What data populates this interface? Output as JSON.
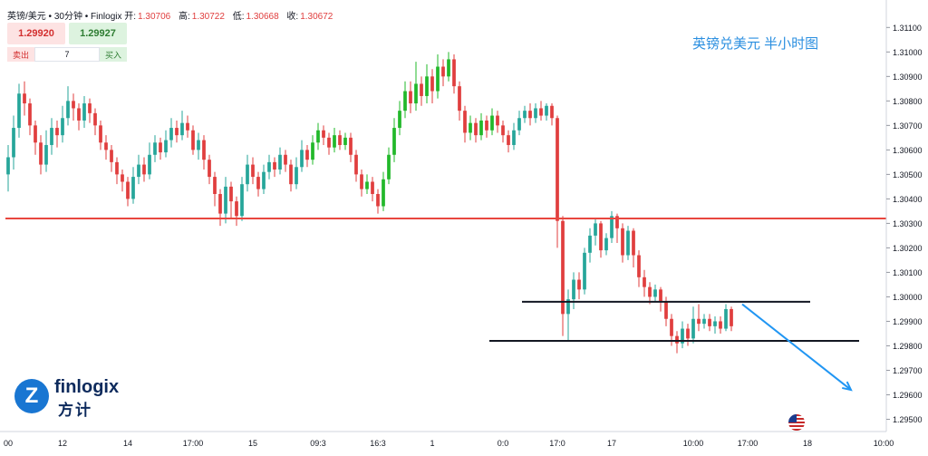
{
  "header": {
    "symbol": "英镑/美元 • 30分钟 • Finlogix",
    "open_label": "开:",
    "open_value": "1.30706",
    "high_label": "高:",
    "high_value": "1.30722",
    "low_label": "低:",
    "low_value": "1.30668",
    "close_label": "收:",
    "close_value": "1.30672"
  },
  "trade_panel": {
    "sell_price": "1.29920",
    "buy_price": "1.29927",
    "sell_label": "卖出",
    "buy_label": "买入",
    "quantity": "7"
  },
  "chart_title": "英镑兑美元 半小时图",
  "logo": {
    "brand": "finlogix",
    "brand_cn": "方计"
  },
  "colors": {
    "up": "#26a69a",
    "up_bright": "#22b82a",
    "down": "#e03e3e",
    "resistance_line": "#e8473f",
    "support_lines": "#131722",
    "arrow": "#2196f3",
    "title": "#2b8fe0"
  },
  "chart_data": {
    "type": "candlestick",
    "title": "英镑兑美元 半小时图",
    "ylim": [
      1.2945,
      1.3119
    ],
    "y_ticks": [
      "1.31100",
      "1.31000",
      "1.30900",
      "1.30800",
      "1.30700",
      "1.30600",
      "1.30500",
      "1.30400",
      "1.30300",
      "1.30200",
      "1.30100",
      "1.30000",
      "1.29900",
      "1.29800",
      "1.29700",
      "1.29600",
      "1.29500"
    ],
    "x_ticks": [
      "00",
      "12",
      "14",
      "17:00",
      "15",
      "09:3",
      "16:3",
      "1",
      "0:0",
      "17:0",
      "17",
      "10:00",
      "17:00",
      "18",
      "10:00"
    ],
    "x_tick_slots": [
      0,
      10,
      22,
      34,
      45,
      57,
      68,
      78,
      91,
      101,
      111,
      126,
      136,
      147,
      161
    ],
    "x_slots": 162,
    "candles": [
      {
        "o": 1.305,
        "c": 1.3057,
        "h": 1.3062,
        "l": 1.3043
      },
      {
        "o": 1.3057,
        "c": 1.3069,
        "h": 1.3074,
        "l": 1.3052
      },
      {
        "o": 1.3069,
        "c": 1.3083,
        "h": 1.3087,
        "l": 1.3065
      },
      {
        "o": 1.3083,
        "c": 1.3079,
        "h": 1.3088,
        "l": 1.3074
      },
      {
        "o": 1.3079,
        "c": 1.307,
        "h": 1.3081,
        "l": 1.3066
      },
      {
        "o": 1.307,
        "c": 1.3063,
        "h": 1.3072,
        "l": 1.3058
      },
      {
        "o": 1.3063,
        "c": 1.3054,
        "h": 1.3066,
        "l": 1.305
      },
      {
        "o": 1.3054,
        "c": 1.3062,
        "h": 1.3068,
        "l": 1.3051
      },
      {
        "o": 1.3062,
        "c": 1.3069,
        "h": 1.3073,
        "l": 1.3058
      },
      {
        "o": 1.3069,
        "c": 1.3066,
        "h": 1.3072,
        "l": 1.3061
      },
      {
        "o": 1.3066,
        "c": 1.3073,
        "h": 1.3078,
        "l": 1.3063
      },
      {
        "o": 1.3073,
        "c": 1.308,
        "h": 1.3086,
        "l": 1.307
      },
      {
        "o": 1.308,
        "c": 1.3077,
        "h": 1.3083,
        "l": 1.3072
      },
      {
        "o": 1.3077,
        "c": 1.3072,
        "h": 1.3079,
        "l": 1.3068
      },
      {
        "o": 1.3072,
        "c": 1.3079,
        "h": 1.3082,
        "l": 1.3069
      },
      {
        "o": 1.3079,
        "c": 1.3075,
        "h": 1.3081,
        "l": 1.3071
      },
      {
        "o": 1.3075,
        "c": 1.307,
        "h": 1.3077,
        "l": 1.3066
      },
      {
        "o": 1.307,
        "c": 1.3063,
        "h": 1.3072,
        "l": 1.306
      },
      {
        "o": 1.3063,
        "c": 1.306,
        "h": 1.3066,
        "l": 1.3056
      },
      {
        "o": 1.306,
        "c": 1.3055,
        "h": 1.3062,
        "l": 1.3051
      },
      {
        "o": 1.3055,
        "c": 1.305,
        "h": 1.3057,
        "l": 1.3046
      },
      {
        "o": 1.305,
        "c": 1.3047,
        "h": 1.3052,
        "l": 1.3043
      },
      {
        "o": 1.3047,
        "c": 1.304,
        "h": 1.3049,
        "l": 1.3037
      },
      {
        "o": 1.304,
        "c": 1.3049,
        "h": 1.3053,
        "l": 1.3038
      },
      {
        "o": 1.3049,
        "c": 1.3054,
        "h": 1.3058,
        "l": 1.3046
      },
      {
        "o": 1.3054,
        "c": 1.305,
        "h": 1.3057,
        "l": 1.3047
      },
      {
        "o": 1.305,
        "c": 1.3058,
        "h": 1.3063,
        "l": 1.3048
      },
      {
        "o": 1.3058,
        "c": 1.3063,
        "h": 1.3066,
        "l": 1.3055
      },
      {
        "o": 1.3063,
        "c": 1.3059,
        "h": 1.3065,
        "l": 1.3056
      },
      {
        "o": 1.3059,
        "c": 1.3064,
        "h": 1.3068,
        "l": 1.3057
      },
      {
        "o": 1.3064,
        "c": 1.3069,
        "h": 1.3073,
        "l": 1.3061
      },
      {
        "o": 1.3069,
        "c": 1.3066,
        "h": 1.3072,
        "l": 1.3063
      },
      {
        "o": 1.3066,
        "c": 1.3071,
        "h": 1.3076,
        "l": 1.3064
      },
      {
        "o": 1.3071,
        "c": 1.3068,
        "h": 1.3074,
        "l": 1.3065
      },
      {
        "o": 1.3068,
        "c": 1.306,
        "h": 1.307,
        "l": 1.3058
      },
      {
        "o": 1.306,
        "c": 1.3064,
        "h": 1.3067,
        "l": 1.3056
      },
      {
        "o": 1.3064,
        "c": 1.3056,
        "h": 1.3066,
        "l": 1.3052
      },
      {
        "o": 1.3056,
        "c": 1.3049,
        "h": 1.3058,
        "l": 1.3046
      },
      {
        "o": 1.3049,
        "c": 1.3042,
        "h": 1.3051,
        "l": 1.3037
      },
      {
        "o": 1.3042,
        "c": 1.3034,
        "h": 1.3044,
        "l": 1.3029
      },
      {
        "o": 1.3034,
        "c": 1.3045,
        "h": 1.3049,
        "l": 1.303
      },
      {
        "o": 1.3045,
        "c": 1.3039,
        "h": 1.3047,
        "l": 1.3032
      },
      {
        "o": 1.3039,
        "c": 1.3033,
        "h": 1.3041,
        "l": 1.3029
      },
      {
        "o": 1.3033,
        "c": 1.3046,
        "h": 1.3049,
        "l": 1.3031
      },
      {
        "o": 1.3046,
        "c": 1.3054,
        "h": 1.3058,
        "l": 1.3043
      },
      {
        "o": 1.3054,
        "c": 1.3049,
        "h": 1.3057,
        "l": 1.3046
      },
      {
        "o": 1.3049,
        "c": 1.3044,
        "h": 1.3051,
        "l": 1.3041
      },
      {
        "o": 1.3044,
        "c": 1.3051,
        "h": 1.3054,
        "l": 1.3042
      },
      {
        "o": 1.3051,
        "c": 1.3055,
        "h": 1.3058,
        "l": 1.3048
      },
      {
        "o": 1.3055,
        "c": 1.3052,
        "h": 1.3057,
        "l": 1.3049
      },
      {
        "o": 1.3052,
        "c": 1.3058,
        "h": 1.3061,
        "l": 1.305
      },
      {
        "o": 1.3058,
        "c": 1.3054,
        "h": 1.306,
        "l": 1.3051
      },
      {
        "o": 1.3054,
        "c": 1.3046,
        "h": 1.3056,
        "l": 1.3043
      },
      {
        "o": 1.3046,
        "c": 1.3053,
        "h": 1.3057,
        "l": 1.3044
      },
      {
        "o": 1.3053,
        "c": 1.306,
        "h": 1.3064,
        "l": 1.3051
      },
      {
        "o": 1.306,
        "c": 1.3056,
        "h": 1.3062,
        "l": 1.3053
      },
      {
        "o": 1.3056,
        "c": 1.3063,
        "h": 1.3066,
        "l": 1.3054
      },
      {
        "o": 1.3063,
        "c": 1.3068,
        "h": 1.3071,
        "l": 1.306
      },
      {
        "o": 1.3068,
        "c": 1.3065,
        "h": 1.307,
        "l": 1.3062
      },
      {
        "o": 1.3065,
        "c": 1.3061,
        "h": 1.3067,
        "l": 1.3058
      },
      {
        "o": 1.3061,
        "c": 1.3066,
        "h": 1.3069,
        "l": 1.3059
      },
      {
        "o": 1.3066,
        "c": 1.3062,
        "h": 1.3068,
        "l": 1.306
      },
      {
        "o": 1.3062,
        "c": 1.3065,
        "h": 1.3067,
        "l": 1.306
      },
      {
        "o": 1.3065,
        "c": 1.3058,
        "h": 1.3067,
        "l": 1.3055
      },
      {
        "o": 1.3058,
        "c": 1.305,
        "h": 1.306,
        "l": 1.3047
      },
      {
        "o": 1.305,
        "c": 1.3044,
        "h": 1.3052,
        "l": 1.3041
      },
      {
        "o": 1.3044,
        "c": 1.3047,
        "h": 1.305,
        "l": 1.3042
      },
      {
        "o": 1.3047,
        "c": 1.3042,
        "h": 1.3049,
        "l": 1.3039
      },
      {
        "o": 1.3042,
        "c": 1.3037,
        "h": 1.3044,
        "l": 1.3034
      },
      {
        "o": 1.3037,
        "c": 1.3048,
        "h": 1.3051,
        "l": 1.3035
      },
      {
        "o": 1.3048,
        "c": 1.3058,
        "h": 1.3061,
        "l": 1.3046
      },
      {
        "o": 1.3058,
        "c": 1.3069,
        "h": 1.3073,
        "l": 1.3055
      },
      {
        "o": 1.3069,
        "c": 1.3076,
        "h": 1.308,
        "l": 1.3066
      },
      {
        "o": 1.3076,
        "c": 1.3084,
        "h": 1.3088,
        "l": 1.3073
      },
      {
        "o": 1.3084,
        "c": 1.3079,
        "h": 1.3088,
        "l": 1.3075
      },
      {
        "o": 1.3079,
        "c": 1.3087,
        "h": 1.3096,
        "l": 1.3076
      },
      {
        "o": 1.3087,
        "c": 1.3082,
        "h": 1.309,
        "l": 1.3078
      },
      {
        "o": 1.3082,
        "c": 1.309,
        "h": 1.3095,
        "l": 1.3079
      },
      {
        "o": 1.309,
        "c": 1.3084,
        "h": 1.3093,
        "l": 1.3079
      },
      {
        "o": 1.3084,
        "c": 1.3094,
        "h": 1.3099,
        "l": 1.3081
      },
      {
        "o": 1.3094,
        "c": 1.309,
        "h": 1.3097,
        "l": 1.3086
      },
      {
        "o": 1.309,
        "c": 1.3097,
        "h": 1.31,
        "l": 1.3088
      },
      {
        "o": 1.3097,
        "c": 1.3086,
        "h": 1.3099,
        "l": 1.3083
      },
      {
        "o": 1.3086,
        "c": 1.3076,
        "h": 1.3088,
        "l": 1.3072
      },
      {
        "o": 1.3076,
        "c": 1.3067,
        "h": 1.3078,
        "l": 1.3063
      },
      {
        "o": 1.3067,
        "c": 1.3071,
        "h": 1.3074,
        "l": 1.3064
      },
      {
        "o": 1.3071,
        "c": 1.3066,
        "h": 1.3073,
        "l": 1.3063
      },
      {
        "o": 1.3066,
        "c": 1.3072,
        "h": 1.3075,
        "l": 1.3064
      },
      {
        "o": 1.3072,
        "c": 1.3068,
        "h": 1.3074,
        "l": 1.3065
      },
      {
        "o": 1.3068,
        "c": 1.3074,
        "h": 1.3077,
        "l": 1.3066
      },
      {
        "o": 1.3074,
        "c": 1.307,
        "h": 1.3076,
        "l": 1.3067
      },
      {
        "o": 1.307,
        "c": 1.3066,
        "h": 1.3072,
        "l": 1.3063
      },
      {
        "o": 1.3066,
        "c": 1.3062,
        "h": 1.3068,
        "l": 1.3059
      },
      {
        "o": 1.3062,
        "c": 1.3068,
        "h": 1.3071,
        "l": 1.306
      },
      {
        "o": 1.3068,
        "c": 1.3073,
        "h": 1.3076,
        "l": 1.3066
      },
      {
        "o": 1.3073,
        "c": 1.3076,
        "h": 1.3078,
        "l": 1.3071
      },
      {
        "o": 1.3076,
        "c": 1.3073,
        "h": 1.3079,
        "l": 1.307
      },
      {
        "o": 1.3073,
        "c": 1.3077,
        "h": 1.3079,
        "l": 1.3071
      },
      {
        "o": 1.3077,
        "c": 1.3074,
        "h": 1.308,
        "l": 1.3072
      },
      {
        "o": 1.3074,
        "c": 1.3078,
        "h": 1.3079,
        "l": 1.3072
      },
      {
        "o": 1.3078,
        "c": 1.3073,
        "h": 1.3079,
        "l": 1.307
      },
      {
        "o": 1.3073,
        "c": 1.3031,
        "h": 1.3074,
        "l": 1.302
      },
      {
        "o": 1.3031,
        "c": 1.2993,
        "h": 1.3033,
        "l": 1.2984
      },
      {
        "o": 1.2993,
        "c": 1.2999,
        "h": 1.3003,
        "l": 1.2982
      },
      {
        "o": 1.2999,
        "c": 1.3007,
        "h": 1.301,
        "l": 1.2995
      },
      {
        "o": 1.3007,
        "c": 1.3003,
        "h": 1.301,
        "l": 1.2999
      },
      {
        "o": 1.3003,
        "c": 1.3018,
        "h": 1.302,
        "l": 1.3001
      },
      {
        "o": 1.3018,
        "c": 1.3025,
        "h": 1.3028,
        "l": 1.3014
      },
      {
        "o": 1.3025,
        "c": 1.303,
        "h": 1.3032,
        "l": 1.3021
      },
      {
        "o": 1.303,
        "c": 1.3019,
        "h": 1.3031,
        "l": 1.3016
      },
      {
        "o": 1.3019,
        "c": 1.3024,
        "h": 1.3026,
        "l": 1.3017
      },
      {
        "o": 1.3024,
        "c": 1.3033,
        "h": 1.3035,
        "l": 1.3022
      },
      {
        "o": 1.3033,
        "c": 1.3028,
        "h": 1.3034,
        "l": 1.3022
      },
      {
        "o": 1.3028,
        "c": 1.3017,
        "h": 1.303,
        "l": 1.3014
      },
      {
        "o": 1.3017,
        "c": 1.3027,
        "h": 1.3029,
        "l": 1.3015
      },
      {
        "o": 1.3027,
        "c": 1.3017,
        "h": 1.3028,
        "l": 1.3012
      },
      {
        "o": 1.3017,
        "c": 1.3008,
        "h": 1.3019,
        "l": 1.3004
      },
      {
        "o": 1.3008,
        "c": 1.3004,
        "h": 1.3011,
        "l": 1.3
      },
      {
        "o": 1.3004,
        "c": 1.3,
        "h": 1.3006,
        "l": 1.2997
      },
      {
        "o": 1.3,
        "c": 1.3003,
        "h": 1.3005,
        "l": 1.2998
      },
      {
        "o": 1.3003,
        "c": 1.2998,
        "h": 1.3004,
        "l": 1.2994
      },
      {
        "o": 1.2998,
        "c": 1.2991,
        "h": 1.3,
        "l": 1.2988
      },
      {
        "o": 1.2991,
        "c": 1.2984,
        "h": 1.2993,
        "l": 1.298
      },
      {
        "o": 1.2984,
        "c": 1.2981,
        "h": 1.2986,
        "l": 1.2977
      },
      {
        "o": 1.2981,
        "c": 1.2987,
        "h": 1.299,
        "l": 1.2979
      },
      {
        "o": 1.2987,
        "c": 1.2983,
        "h": 1.2989,
        "l": 1.298
      },
      {
        "o": 1.2983,
        "c": 1.2991,
        "h": 1.2996,
        "l": 1.2981
      },
      {
        "o": 1.2991,
        "c": 1.2989,
        "h": 1.2997,
        "l": 1.2986
      },
      {
        "o": 1.2989,
        "c": 1.2991,
        "h": 1.2993,
        "l": 1.2987
      },
      {
        "o": 1.2991,
        "c": 1.2988,
        "h": 1.2993,
        "l": 1.2986
      },
      {
        "o": 1.2988,
        "c": 1.299,
        "h": 1.2992,
        "l": 1.2985
      },
      {
        "o": 1.299,
        "c": 1.2987,
        "h": 1.2992,
        "l": 1.2985
      },
      {
        "o": 1.2987,
        "c": 1.2995,
        "h": 1.2997,
        "l": 1.2986
      },
      {
        "o": 1.2995,
        "c": 1.2988,
        "h": 1.2996,
        "l": 1.2986
      }
    ],
    "lines": [
      {
        "name": "resistance",
        "y": 1.3032,
        "x_from": 0,
        "x_to": 162
      },
      {
        "name": "support-upper",
        "y": 1.2998,
        "x_from": 95,
        "x_to": 148
      },
      {
        "name": "support-lower",
        "y": 1.2982,
        "x_from": 89,
        "x_to": 157
      }
    ],
    "arrow": {
      "x_from": 135,
      "y_from": 1.2997,
      "x_to": 155,
      "y_to": 1.2962
    }
  }
}
